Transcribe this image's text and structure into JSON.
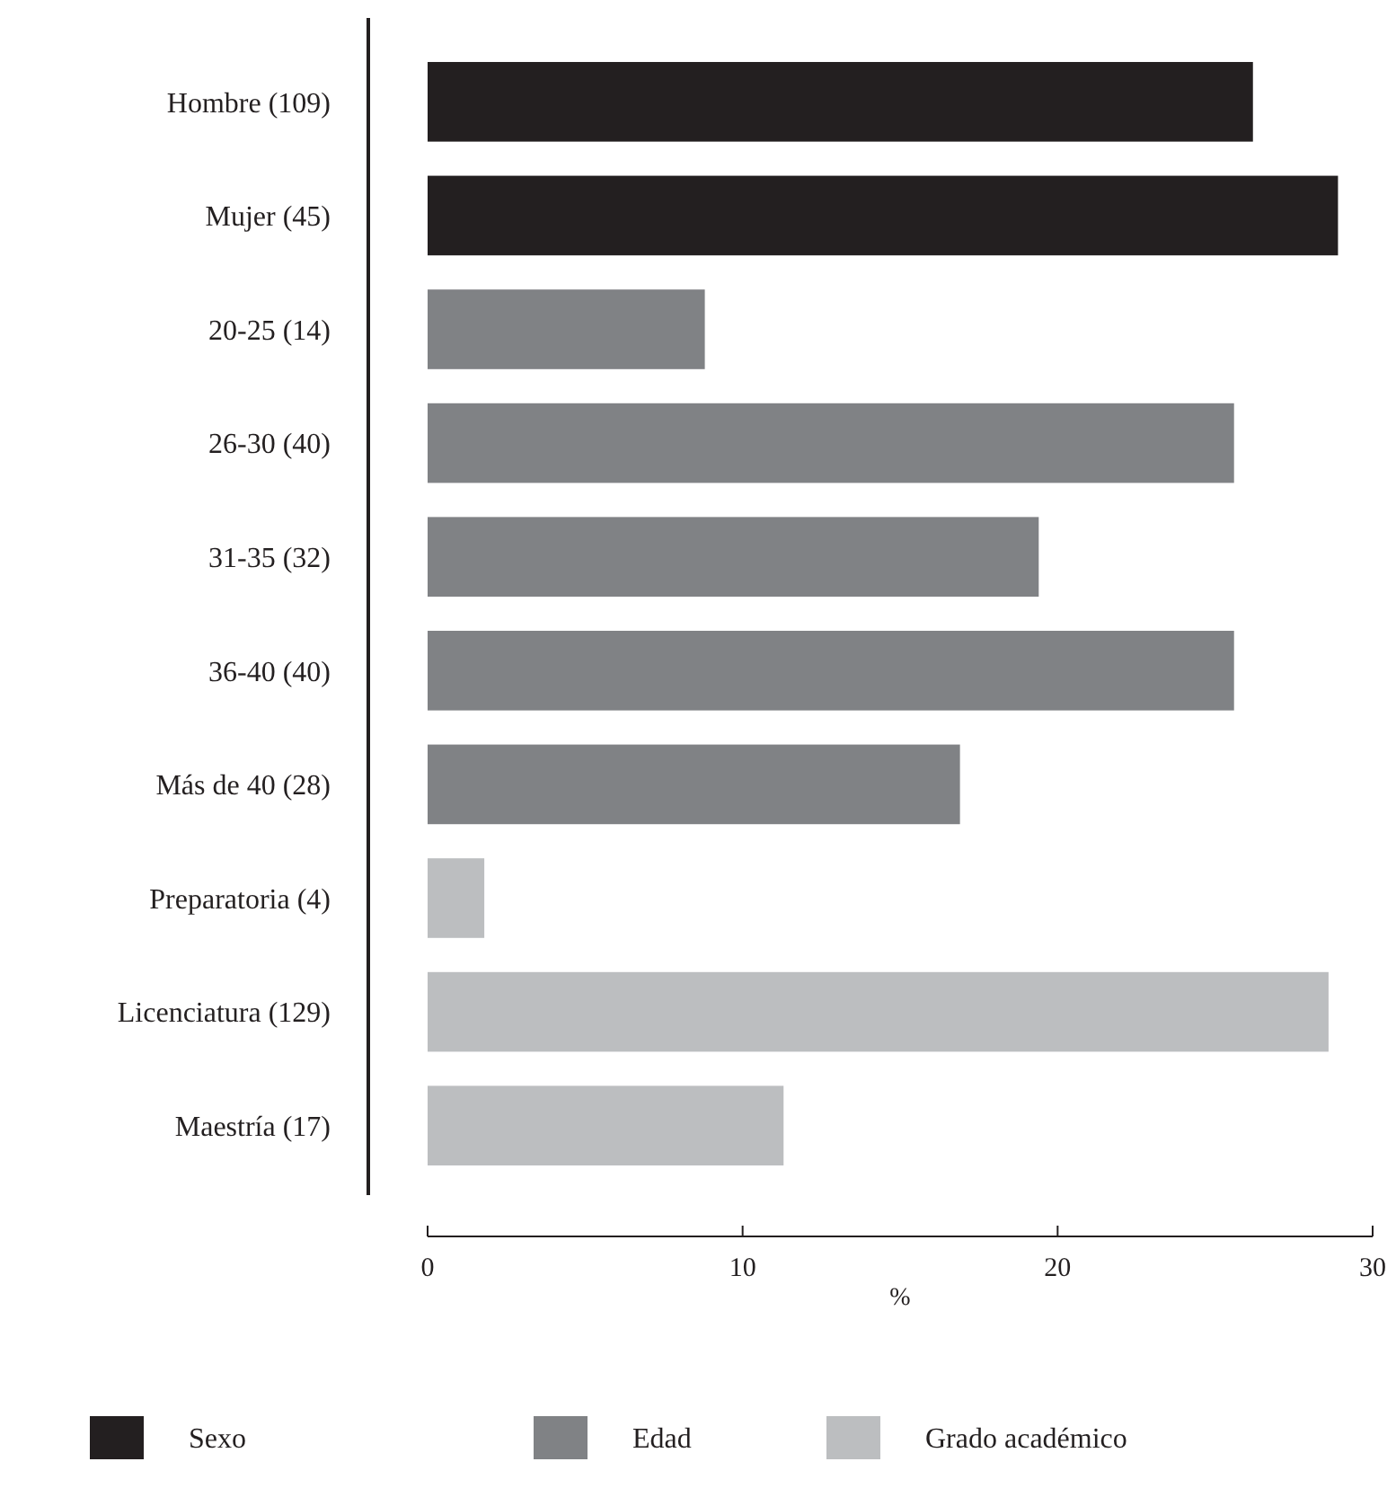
{
  "chart_data": {
    "type": "bar",
    "orientation": "horizontal",
    "xlabel": "%",
    "categories": [
      "Hombre (109)",
      "Mujer (45)",
      "20-25 (14)",
      "26-30 (40)",
      "31-35 (32)",
      "36-40 (40)",
      "Más de 40 (28)",
      "Preparatoria (4)",
      "Licenciatura (129)",
      "Maestría (17)"
    ],
    "series": [
      {
        "name": "Sexo",
        "color": "#231f20",
        "values": [
          26.2,
          28.9,
          null,
          null,
          null,
          null,
          null,
          null,
          null,
          null
        ]
      },
      {
        "name": "Edad",
        "color": "#808285",
        "values": [
          null,
          null,
          8.8,
          25.6,
          19.4,
          25.6,
          16.9,
          null,
          null,
          null
        ]
      },
      {
        "name": "Grado académico",
        "color": "#bcbec0",
        "values": [
          null,
          null,
          null,
          null,
          null,
          null,
          null,
          1.8,
          28.6,
          11.3
        ]
      }
    ],
    "xlim": [
      0,
      30
    ],
    "xticks": [
      0,
      10,
      20,
      30
    ],
    "grid": false,
    "legend": "bottom"
  }
}
